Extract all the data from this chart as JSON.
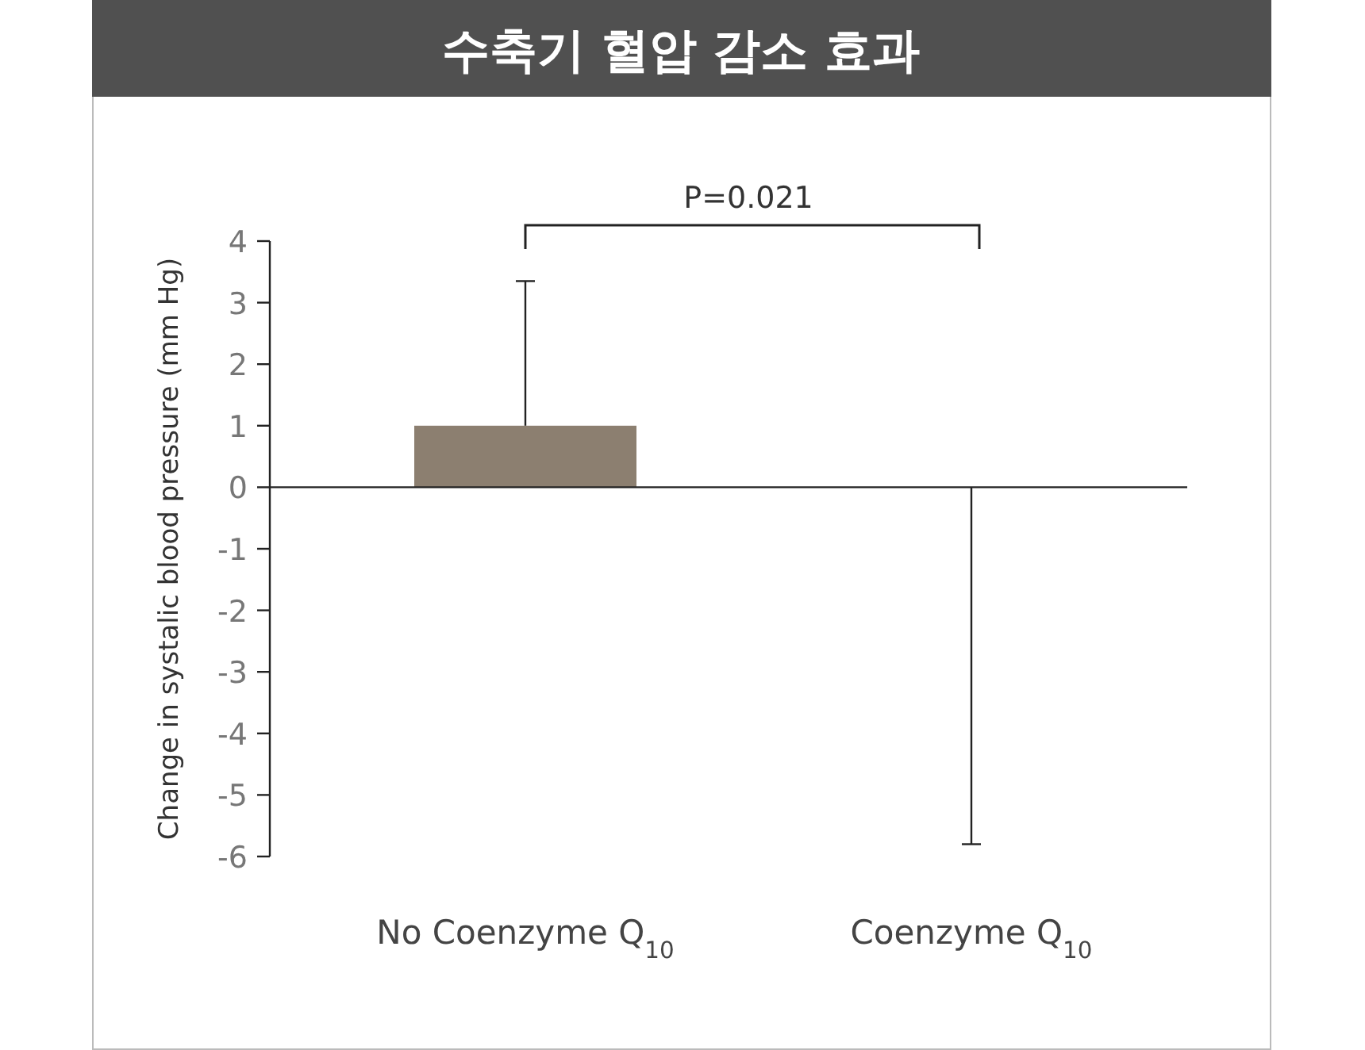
{
  "chart_data": {
    "type": "bar",
    "title": "수축기 혈압 감소 효과",
    "ylabel": "Change in systalic blood pressure (mm Hg)",
    "categories": [
      "No Coenzyme Q$_{10}$",
      "Coenzyme Q$_{10}$"
    ],
    "values": [
      1.0,
      0
    ],
    "errors": [
      [
        1.0,
        3.35
      ],
      [
        -5.8,
        0
      ]
    ],
    "color": "#8c7f70",
    "ylim": [
      -6,
      4
    ],
    "yticks": [
      -6,
      -5,
      -4,
      -3,
      -2,
      -1,
      0,
      1,
      2,
      3,
      4
    ],
    "annotations": [
      "P=0.021"
    ]
  }
}
